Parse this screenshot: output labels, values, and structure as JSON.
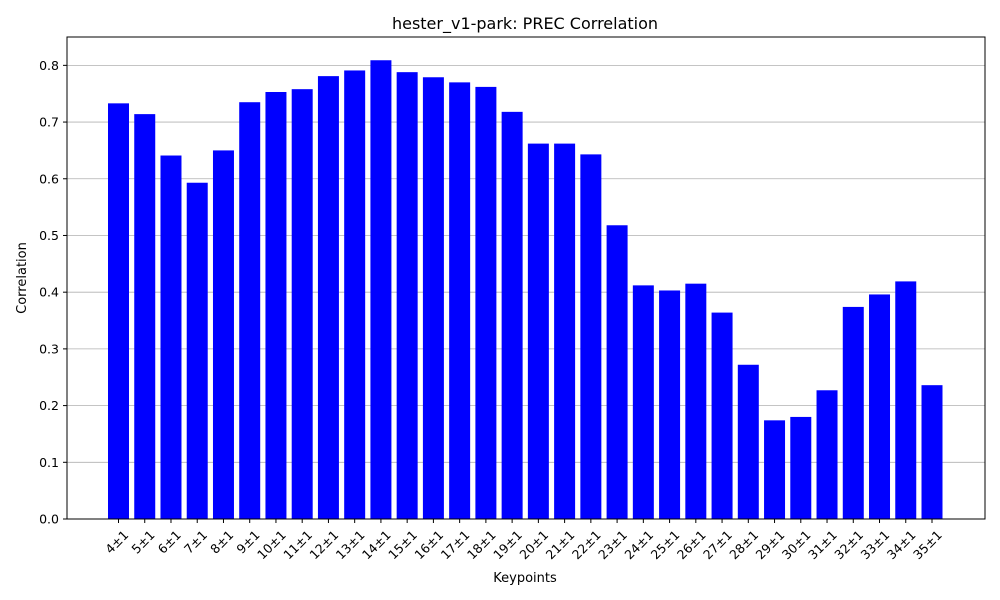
{
  "chart_data": {
    "type": "bar",
    "title": "hester_v1-park: PREC Correlation",
    "xlabel": "Keypoints",
    "ylabel": "Correlation",
    "ylim": [
      0,
      0.85
    ],
    "yticks": [
      "0.0",
      "0.1",
      "0.2",
      "0.3",
      "0.4",
      "0.5",
      "0.6",
      "0.7",
      "0.8"
    ],
    "grid": "y-axis on",
    "bar_color": "#0000ff",
    "categories": [
      "4±1",
      "5±1",
      "6±1",
      "7±1",
      "8±1",
      "9±1",
      "10±1",
      "11±1",
      "12±1",
      "13±1",
      "14±1",
      "15±1",
      "16±1",
      "17±1",
      "18±1",
      "19±1",
      "20±1",
      "21±1",
      "22±1",
      "23±1",
      "24±1",
      "25±1",
      "26±1",
      "27±1",
      "28±1",
      "29±1",
      "30±1",
      "31±1",
      "32±1",
      "33±1",
      "34±1",
      "35±1"
    ],
    "values": [
      0.733,
      0.714,
      0.641,
      0.593,
      0.65,
      0.735,
      0.753,
      0.758,
      0.781,
      0.791,
      0.809,
      0.788,
      0.779,
      0.77,
      0.762,
      0.718,
      0.662,
      0.662,
      0.643,
      0.518,
      0.412,
      0.403,
      0.415,
      0.364,
      0.272,
      0.174,
      0.18,
      0.227,
      0.374,
      0.396,
      0.419,
      0.236
    ]
  }
}
